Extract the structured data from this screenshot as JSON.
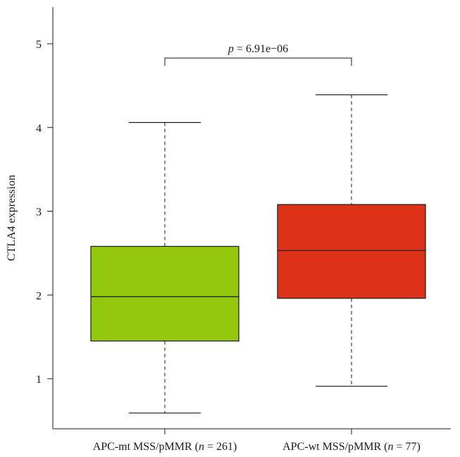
{
  "chart_data": {
    "type": "box",
    "ylabel": "CTLA4 expression",
    "xlabel": "",
    "ylim": [
      0.47,
      5.5
    ],
    "yticks": [
      1,
      2,
      3,
      4,
      5
    ],
    "grid": false,
    "categories": [
      {
        "pre": "APC-mt MSS/pMMR (",
        "n_symbol": "n",
        "n_text": " = 261)"
      },
      {
        "pre": "APC-wt MSS/pMMR (",
        "n_symbol": "n",
        "n_text": " = 77)"
      }
    ],
    "boxes": [
      {
        "whisker_low": 0.59,
        "q1": 1.45,
        "median": 1.98,
        "q3": 2.58,
        "whisker_high": 4.06,
        "color": "#92c90d"
      },
      {
        "whisker_low": 0.91,
        "q1": 1.96,
        "median": 2.53,
        "q3": 3.08,
        "whisker_high": 4.39,
        "color": "#dc3318"
      }
    ],
    "significance": {
      "symbol": "p",
      "text": " = 6.91e−06",
      "y": 4.83
    }
  }
}
